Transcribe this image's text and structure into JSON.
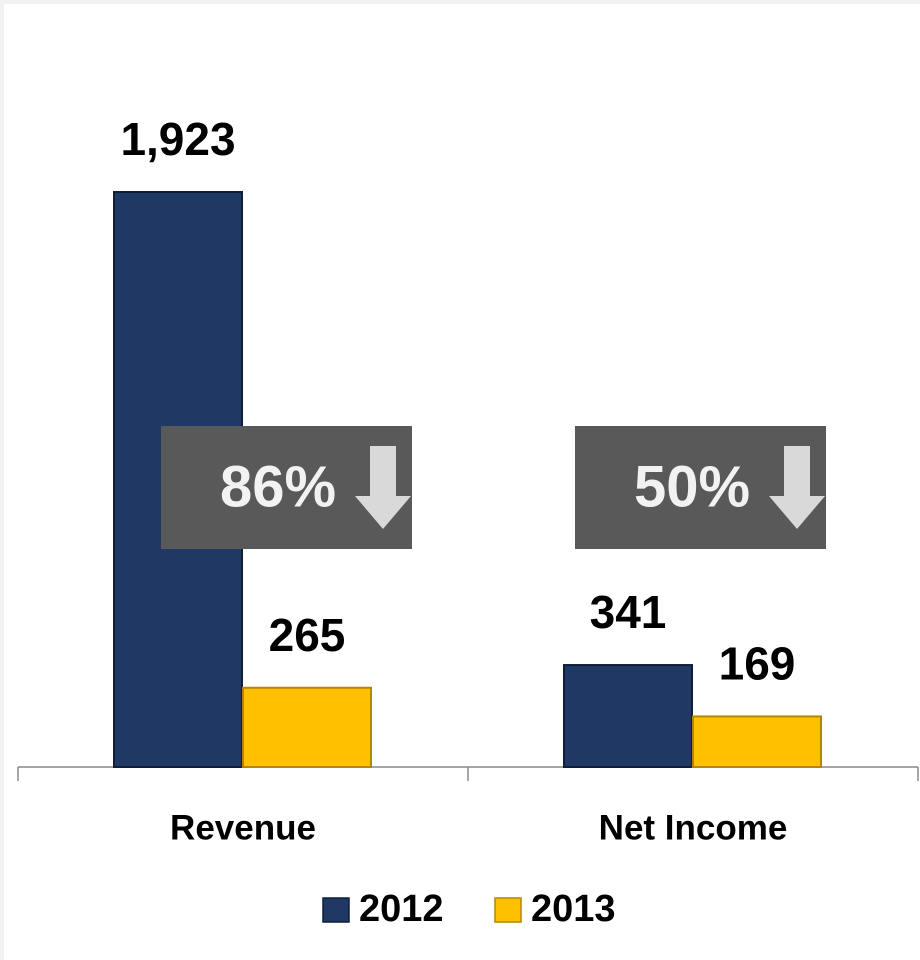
{
  "chart_data": {
    "type": "bar",
    "categories": [
      "Revenue",
      "Net Income"
    ],
    "series": [
      {
        "name": "2012",
        "color": "#1f3864",
        "values": [
          1923,
          341
        ],
        "value_labels": [
          "1,923",
          "341"
        ]
      },
      {
        "name": "2013",
        "color": "#ffc000",
        "values": [
          265,
          169
        ]
      }
    ],
    "annotations": [
      "86%",
      "50%"
    ],
    "legend": "bottom"
  }
}
